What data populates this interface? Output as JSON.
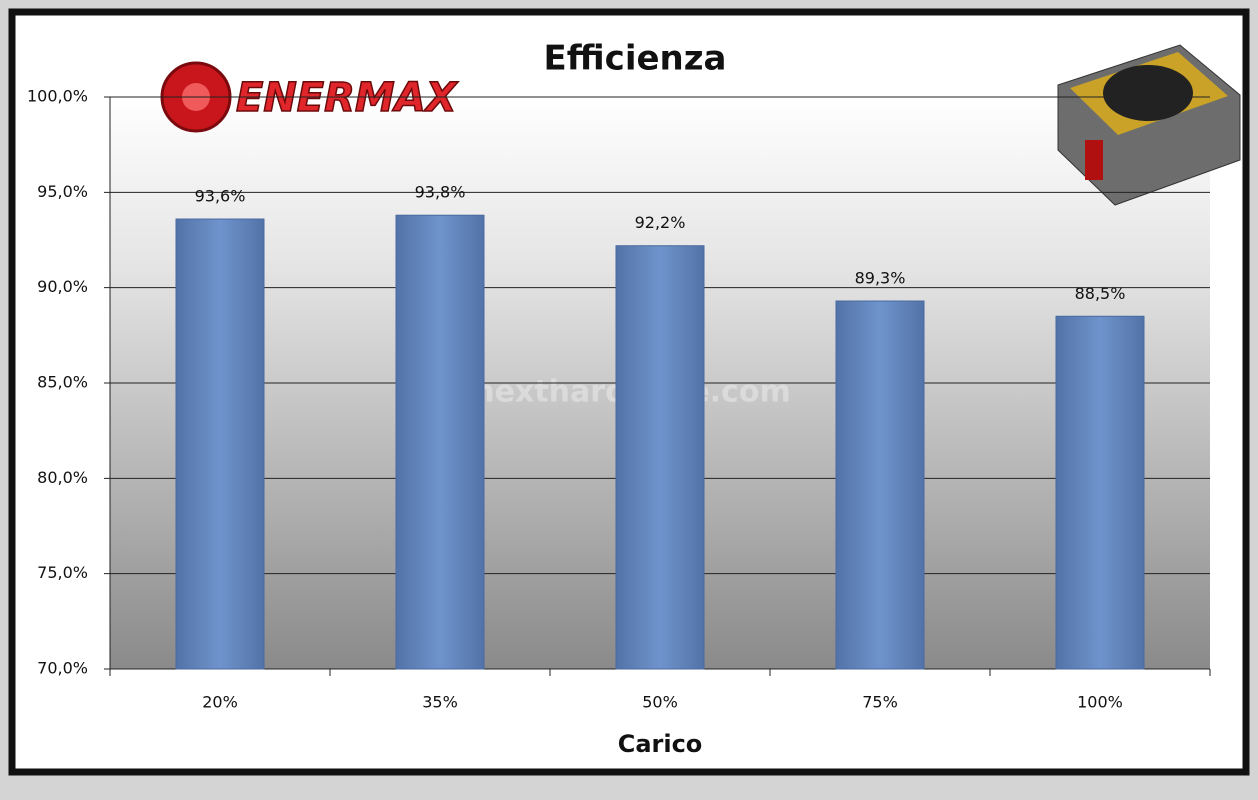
{
  "chart_data": {
    "type": "bar",
    "title": "Efficienza",
    "x_label": "Carico",
    "logo_text": "ENERMAX",
    "watermark": "nexthardware.com",
    "categories": [
      "20%",
      "35%",
      "50%",
      "75%",
      "100%"
    ],
    "values": [
      93.6,
      93.8,
      92.2,
      89.3,
      88.5
    ],
    "value_labels": [
      "93,6%",
      "93,8%",
      "92,2%",
      "89,3%",
      "88,5%"
    ],
    "color": "#6a8fc8",
    "ylim": [
      70,
      100
    ],
    "yticks": [
      {
        "value": 70,
        "label": "70,0%"
      },
      {
        "value": 75,
        "label": "75,0%"
      },
      {
        "value": 80,
        "label": "80,0%"
      },
      {
        "value": 85,
        "label": "85,0%"
      },
      {
        "value": 90,
        "label": "90,0%"
      },
      {
        "value": 95,
        "label": "95,0%"
      },
      {
        "value": 100,
        "label": "100,0%"
      }
    ],
    "grid": true
  }
}
